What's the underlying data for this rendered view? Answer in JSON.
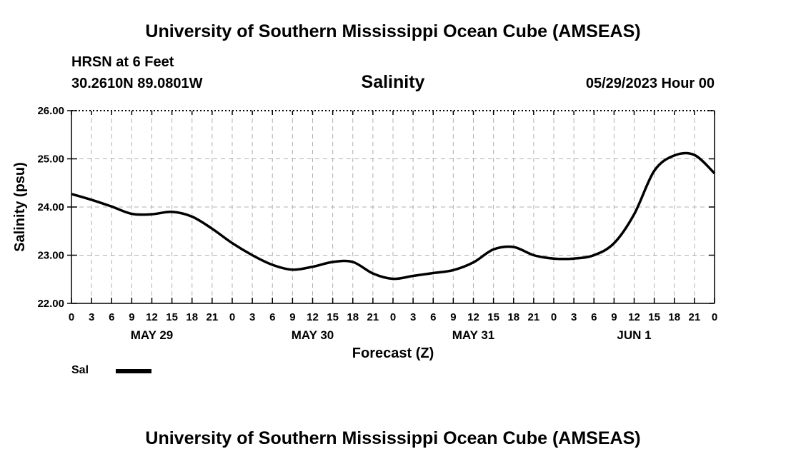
{
  "header": {
    "title": "University of Southern Mississippi Ocean Cube (AMSEAS)",
    "station": "HRSN at 6 Feet",
    "coords": "30.2610N  89.0801W",
    "date": "05/29/2023 Hour 00",
    "footer_title": "University of Southern Mississippi Ocean Cube (AMSEAS)"
  },
  "legend": {
    "label": "Sal"
  },
  "chart_data": {
    "type": "line",
    "title": "Salinity",
    "xlabel": "Forecast (Z)",
    "ylabel": "Salinity (psu)",
    "xlim": [
      0,
      96
    ],
    "ylim": [
      22,
      26
    ],
    "y_ticks": [
      "22.00",
      "23.00",
      "24.00",
      "25.00",
      "26.00"
    ],
    "x_tick_hours": [
      0,
      3,
      6,
      9,
      12,
      15,
      18,
      21,
      24,
      27,
      30,
      33,
      36,
      39,
      42,
      45,
      48,
      51,
      54,
      57,
      60,
      63,
      66,
      69,
      72,
      75,
      78,
      81,
      84,
      87,
      90,
      93,
      96
    ],
    "x_tick_labels": [
      "0",
      "3",
      "6",
      "9",
      "12",
      "15",
      "18",
      "21",
      "0",
      "3",
      "6",
      "9",
      "12",
      "15",
      "18",
      "21",
      "0",
      "3",
      "6",
      "9",
      "12",
      "15",
      "18",
      "21",
      "0",
      "3",
      "6",
      "9",
      "12",
      "15",
      "18",
      "21",
      "0"
    ],
    "day_labels": [
      {
        "hour": 12,
        "label": "MAY 29"
      },
      {
        "hour": 36,
        "label": "MAY 30"
      },
      {
        "hour": 60,
        "label": "MAY 31"
      },
      {
        "hour": 84,
        "label": "JUN 1"
      }
    ],
    "grid": true,
    "series": [
      {
        "name": "Sal",
        "x": [
          0,
          3,
          6,
          9,
          12,
          15,
          18,
          21,
          24,
          27,
          30,
          33,
          36,
          39,
          42,
          45,
          48,
          51,
          54,
          57,
          60,
          63,
          66,
          69,
          72,
          75,
          78,
          81,
          84,
          87,
          90,
          93,
          96
        ],
        "values": [
          24.27,
          24.15,
          24.01,
          23.86,
          23.85,
          23.9,
          23.8,
          23.55,
          23.25,
          23.0,
          22.8,
          22.7,
          22.76,
          22.86,
          22.86,
          22.62,
          22.51,
          22.57,
          22.63,
          22.69,
          22.85,
          23.12,
          23.17,
          23.0,
          22.93,
          22.93,
          23.0,
          23.25,
          23.85,
          24.75,
          25.07,
          25.08,
          24.7
        ]
      }
    ]
  }
}
